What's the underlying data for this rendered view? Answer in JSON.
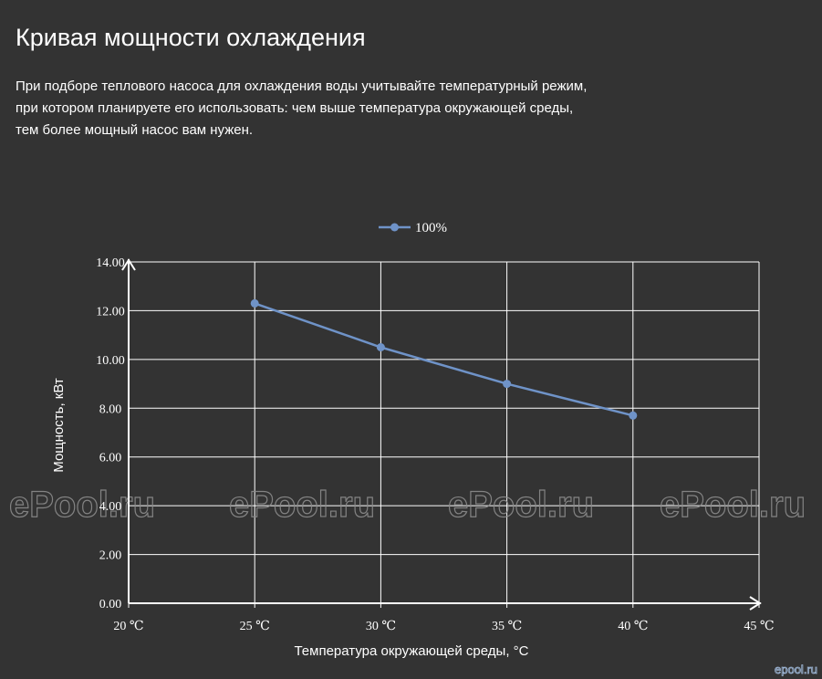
{
  "page": {
    "title": "Кривая мощности охлаждения",
    "intro_lines": [
      "При подборе теплового насоса для охлаждения воды учитывайте температурный режим,",
      "при котором планируете его использовать: чем выше температура окружающей среды,",
      "тем более мощный насос вам нужен."
    ],
    "watermark": "ePool.ru",
    "corner_logo": "epool.ru"
  },
  "colors": {
    "background": "#333333",
    "series": "#6f93c8",
    "grid": "#ffffff",
    "text": "#ffffff"
  },
  "chart_data": {
    "type": "line",
    "title": "",
    "xlabel": "Температура окружающей среды, °C",
    "ylabel": "Мощность, кВт",
    "x": [
      20,
      25,
      30,
      35,
      40,
      45
    ],
    "x_tick_labels": [
      "20 ℃",
      "25 ℃",
      "30 ℃",
      "35 ℃",
      "40 ℃",
      "45 ℃"
    ],
    "y_tick_labels": [
      "0.00",
      "2.00",
      "4.00",
      "6.00",
      "8.00",
      "10.00",
      "12.00",
      "14.00"
    ],
    "xlim": [
      20,
      45
    ],
    "ylim": [
      0,
      14
    ],
    "grid": true,
    "legend_position": "top-center",
    "series": [
      {
        "name": "100%",
        "x": [
          25,
          30,
          35,
          40
        ],
        "values": [
          12.3,
          10.5,
          9.0,
          7.7
        ]
      }
    ]
  }
}
